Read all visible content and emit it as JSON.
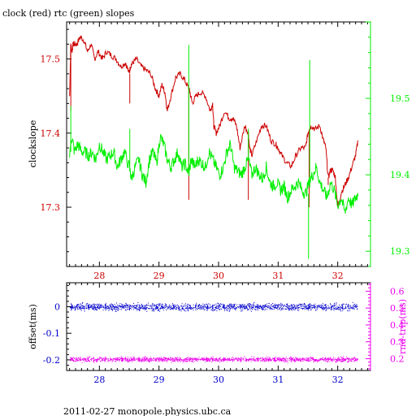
{
  "footer": "2011-02-27  monopole.physics.ubc.ca",
  "colors": {
    "red": "#cc0000",
    "green": "#00ee00",
    "blue": "#0000cc",
    "magenta": "#ee00ee",
    "black": "#000000"
  },
  "chart_data": [
    {
      "type": "line",
      "title": "clock (red) rtc (green) slopes",
      "ylabel": "clockslope",
      "xlim": [
        27.45,
        32.55
      ],
      "ylim_left": [
        17.22,
        17.55
      ],
      "ylim_right": [
        19.28,
        19.6
      ],
      "x_ticks": [
        "28",
        "29",
        "30",
        "31",
        "32"
      ],
      "y_ticks_left": [
        "17.3",
        "17.4",
        "17.5"
      ],
      "y_ticks_right": [
        "19.3",
        "19.4",
        "19.5"
      ],
      "series": [
        {
          "name": "clock",
          "axis": "left",
          "color": "#cc0000",
          "x": [
            27.5,
            27.52,
            27.54,
            27.56,
            27.58,
            27.62,
            27.68,
            27.74,
            27.8,
            27.86,
            27.92,
            27.98,
            28.05,
            28.12,
            28.2,
            28.28,
            28.36,
            28.44,
            28.5,
            28.52,
            28.56,
            28.62,
            28.7,
            28.78,
            28.86,
            28.94,
            29.0,
            29.05,
            29.1,
            29.14,
            29.2,
            29.28,
            29.36,
            29.44,
            29.5,
            29.52,
            29.56,
            29.62,
            29.7,
            29.78,
            29.86,
            29.9,
            29.92,
            29.96,
            30.02,
            30.1,
            30.18,
            30.24,
            30.3,
            30.36,
            30.44,
            30.5,
            30.52,
            30.56,
            30.64,
            30.72,
            30.8,
            30.88,
            30.96,
            31.0,
            31.06,
            31.14,
            31.22,
            31.3,
            31.38,
            31.46,
            31.5,
            31.52,
            31.56,
            31.62,
            31.7,
            31.76,
            31.8,
            31.84,
            31.88,
            31.92,
            31.96,
            32.0,
            32.06,
            32.12,
            32.18,
            32.24,
            32.3,
            32.34
          ],
          "y": [
            17.45,
            17.52,
            17.51,
            17.52,
            17.52,
            17.52,
            17.53,
            17.525,
            17.51,
            17.52,
            17.5,
            17.51,
            17.5,
            17.51,
            17.505,
            17.5,
            17.49,
            17.495,
            17.48,
            17.49,
            17.495,
            17.5,
            17.49,
            17.485,
            17.48,
            17.46,
            17.45,
            17.465,
            17.455,
            17.43,
            17.45,
            17.475,
            17.48,
            17.47,
            17.46,
            17.455,
            17.44,
            17.45,
            17.455,
            17.45,
            17.43,
            17.44,
            17.41,
            17.4,
            17.41,
            17.43,
            17.42,
            17.42,
            17.41,
            17.38,
            17.41,
            17.4,
            17.38,
            17.37,
            17.39,
            17.41,
            17.41,
            17.39,
            17.385,
            17.38,
            17.37,
            17.36,
            17.355,
            17.37,
            17.38,
            17.38,
            17.4,
            17.405,
            17.41,
            17.405,
            17.41,
            17.39,
            17.38,
            17.34,
            17.35,
            17.35,
            17.34,
            17.3,
            17.32,
            17.33,
            17.34,
            17.355,
            17.37,
            17.39
          ],
          "spikes": [
            [
              27.52,
              17.43
            ],
            [
              28.51,
              17.44
            ],
            [
              29.5,
              17.31
            ],
            [
              30.5,
              17.31
            ],
            [
              31.52,
              17.3
            ],
            [
              31.84,
              17.33
            ]
          ]
        },
        {
          "name": "rtc",
          "axis": "right",
          "color": "#00ee00",
          "x": [
            27.5,
            27.54,
            27.58,
            27.64,
            27.7,
            27.76,
            27.82,
            27.88,
            27.94,
            28.0,
            28.06,
            28.12,
            28.18,
            28.24,
            28.3,
            28.36,
            28.42,
            28.5,
            28.54,
            28.6,
            28.66,
            28.72,
            28.78,
            28.84,
            28.9,
            28.96,
            29.02,
            29.08,
            29.14,
            29.2,
            29.26,
            29.32,
            29.38,
            29.44,
            29.5,
            29.54,
            29.6,
            29.66,
            29.72,
            29.78,
            29.84,
            29.9,
            29.96,
            30.02,
            30.08,
            30.14,
            30.2,
            30.26,
            30.32,
            30.38,
            30.44,
            30.5,
            30.56,
            30.62,
            30.68,
            30.74,
            30.8,
            30.86,
            30.92,
            30.98,
            31.04,
            31.1,
            31.16,
            31.22,
            31.28,
            31.34,
            31.4,
            31.46,
            31.52,
            31.58,
            31.64,
            31.7,
            31.76,
            31.82,
            31.88,
            31.94,
            32.0,
            32.06,
            32.12,
            32.18,
            32.24,
            32.3,
            32.34
          ],
          "y": [
            19.43,
            19.45,
            19.43,
            19.44,
            19.43,
            19.43,
            19.425,
            19.43,
            19.42,
            19.44,
            19.43,
            19.42,
            19.425,
            19.43,
            19.41,
            19.42,
            19.43,
            19.41,
            19.395,
            19.41,
            19.42,
            19.4,
            19.39,
            19.42,
            19.43,
            19.415,
            19.45,
            19.44,
            19.42,
            19.41,
            19.42,
            19.43,
            19.41,
            19.415,
            19.4,
            19.42,
            19.41,
            19.42,
            19.415,
            19.41,
            19.43,
            19.42,
            19.41,
            19.4,
            19.41,
            19.43,
            19.44,
            19.41,
            19.405,
            19.4,
            19.41,
            19.42,
            19.4,
            19.41,
            19.4,
            19.395,
            19.41,
            19.39,
            19.385,
            19.39,
            19.38,
            19.385,
            19.37,
            19.38,
            19.385,
            19.39,
            19.38,
            19.375,
            19.39,
            19.4,
            19.41,
            19.39,
            19.38,
            19.37,
            19.39,
            19.38,
            19.36,
            19.37,
            19.35,
            19.37,
            19.36,
            19.37,
            19.375
          ],
          "spikes": [
            [
              27.52,
              19.49
            ],
            [
              28.51,
              19.46
            ],
            [
              29.5,
              19.57
            ],
            [
              29.53,
              19.4
            ],
            [
              30.5,
              19.46
            ],
            [
              31.53,
              19.55
            ],
            [
              31.51,
              19.29
            ]
          ]
        }
      ]
    },
    {
      "type": "scatter",
      "ylabel_left": "offset(ms)",
      "ylabel_right": "rnd-trip(ms)",
      "xlim": [
        27.45,
        32.55
      ],
      "ylim_left": [
        -0.24,
        0.09
      ],
      "ylim_right": [
        0.13,
        0.65
      ],
      "x_ticks": [
        "28",
        "29",
        "30",
        "31",
        "32"
      ],
      "y_ticks_left": [
        "-0.2",
        "-0.1",
        "0"
      ],
      "y_ticks_right": [
        "0.2",
        "0.3",
        "0.4",
        "0.5",
        "0.6"
      ],
      "series": [
        {
          "name": "offset",
          "axis": "left",
          "color": "#0000cc",
          "x_range": [
            27.5,
            32.33
          ],
          "center": 0.0,
          "spread": 0.012
        },
        {
          "name": "rnd-trip",
          "axis": "left",
          "color": "#ee00ee",
          "x_range": [
            27.5,
            32.33
          ],
          "center": -0.197,
          "spread": 0.008
        }
      ]
    }
  ]
}
